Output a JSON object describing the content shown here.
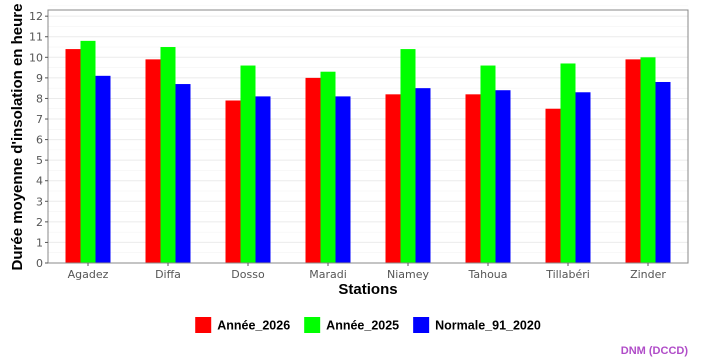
{
  "chart_data": {
    "type": "bar",
    "categories": [
      "Agadez",
      "Diffa",
      "Dosso",
      "Maradi",
      "Niamey",
      "Tahoua",
      "Tillabéri",
      "Zinder"
    ],
    "series": [
      {
        "name": "Année_2026",
        "color": "#ff0000",
        "values": [
          10.4,
          9.9,
          7.9,
          9.0,
          8.2,
          8.2,
          7.5,
          9.9
        ]
      },
      {
        "name": "Année_2025",
        "color": "#00ff00",
        "values": [
          10.8,
          10.5,
          9.6,
          9.3,
          10.4,
          9.6,
          9.7,
          10.0
        ]
      },
      {
        "name": "Normale_91_2020",
        "color": "#0000ff",
        "values": [
          9.1,
          8.7,
          8.1,
          8.1,
          8.5,
          8.4,
          8.3,
          8.8
        ]
      }
    ],
    "title": "",
    "xlabel": "Stations",
    "ylabel": "Durée moyenne d'insolation en heure",
    "ylim": [
      0,
      12.3
    ],
    "yticks": [
      0,
      1,
      2,
      3,
      4,
      5,
      6,
      7,
      8,
      9,
      10,
      11,
      12
    ],
    "grid": true,
    "legend_position": "bottom"
  },
  "credit": "DNM (DCCD)"
}
